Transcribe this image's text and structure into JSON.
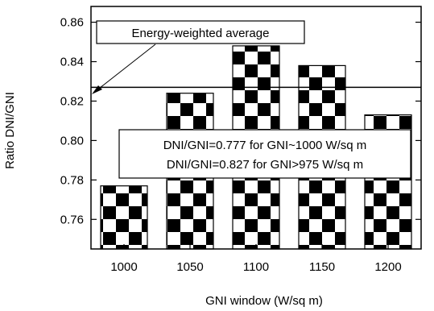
{
  "chart_data": {
    "type": "bar",
    "categories": [
      "1000",
      "1050",
      "1100",
      "1150",
      "1200"
    ],
    "values": [
      0.777,
      0.824,
      0.848,
      0.838,
      0.813
    ],
    "title": "",
    "xlabel": "GNI window (W/sq m)",
    "ylabel": "Ratio DNI/GNI",
    "ylim": [
      0.745,
      0.868
    ],
    "yticks": [
      "0.76",
      "0.78",
      "0.80",
      "0.82",
      "0.84",
      "0.86"
    ],
    "ytick_values": [
      0.76,
      0.78,
      0.8,
      0.82,
      0.84,
      0.86
    ],
    "reference_line": {
      "value": 0.827
    },
    "bar_pattern": "checkerboard",
    "grid": false,
    "annotations": [
      {
        "text": "Energy-weighted average"
      },
      {
        "text": "DNI/GNI=0.777  for GNI~1000 W/sq m"
      },
      {
        "text": "DNI/GNI=0.827 for GNI>975 W/sq m"
      }
    ],
    "colors": {
      "bar_fill": "#000000",
      "bar_alt": "#ffffff",
      "axis": "#000000"
    }
  }
}
